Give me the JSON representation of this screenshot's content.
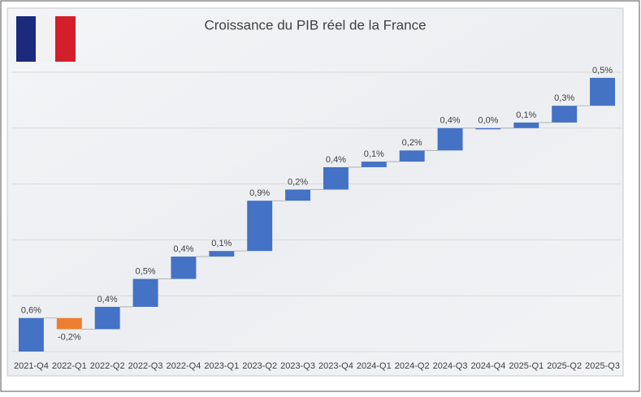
{
  "chart_data": {
    "type": "waterfall",
    "title": "Croissance du PIB réel  de la France",
    "categories": [
      "2021-Q4",
      "2022-Q1",
      "2022-Q2",
      "2022-Q3",
      "2022-Q4",
      "2023-Q1",
      "2023-Q2",
      "2023-Q3",
      "2023-Q4",
      "2024-Q1",
      "2024-Q2",
      "2024-Q3",
      "2024-Q4",
      "2025-Q1",
      "2025-Q2",
      "2025-Q3"
    ],
    "values": [
      0.6,
      -0.2,
      0.4,
      0.5,
      0.4,
      0.1,
      0.9,
      0.2,
      0.4,
      0.1,
      0.2,
      0.4,
      0.0,
      0.1,
      0.3,
      0.5
    ],
    "value_labels": [
      "0,6%",
      "-0,2%",
      "0,4%",
      "0,5%",
      "0,4%",
      "0,1%",
      "0,9%",
      "0,2%",
      "0,4%",
      "0,1%",
      "0,2%",
      "0,4%",
      "0,0%",
      "0,1%",
      "0,3%",
      "0,5%"
    ],
    "increase_color": "#4472c4",
    "decrease_color": "#ed7d31",
    "ylim": [
      0,
      5
    ],
    "yticks": [
      0,
      1,
      2,
      3,
      4,
      5
    ],
    "grid": true
  }
}
